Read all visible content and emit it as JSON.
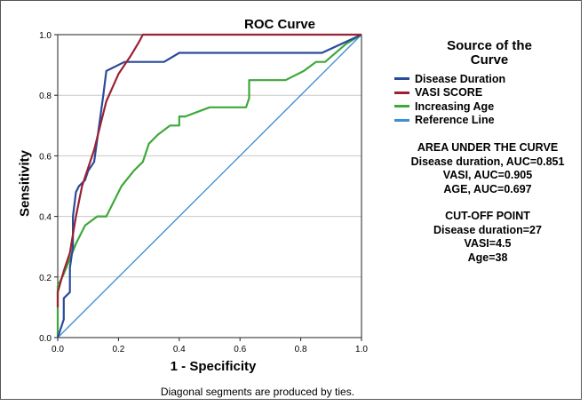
{
  "chart_data": {
    "type": "line",
    "title": "ROC Curve",
    "xlabel": "1 - Specificity",
    "ylabel": "Sensitivity",
    "xlim": [
      0,
      1
    ],
    "ylim": [
      0,
      1
    ],
    "xticks": [
      "0.0",
      "0.2",
      "0.4",
      "0.6",
      "0.8",
      "1.0"
    ],
    "yticks": [
      "0.0",
      "0.2",
      "0.4",
      "0.6",
      "0.8",
      "1.0"
    ],
    "grid": "horizontal",
    "legend_title": "Source of the Curve",
    "legend_placement": "right",
    "footnote": "Diagonal segments are produced by ties.",
    "series": [
      {
        "name": "Disease Duration",
        "color": "#2a4b9b",
        "points": [
          [
            0,
            0
          ],
          [
            0.01,
            0.03
          ],
          [
            0.02,
            0.06
          ],
          [
            0.02,
            0.13
          ],
          [
            0.04,
            0.15
          ],
          [
            0.04,
            0.23
          ],
          [
            0.05,
            0.3
          ],
          [
            0.05,
            0.4
          ],
          [
            0.06,
            0.48
          ],
          [
            0.07,
            0.5
          ],
          [
            0.09,
            0.52
          ],
          [
            0.1,
            0.55
          ],
          [
            0.12,
            0.58
          ],
          [
            0.15,
            0.8
          ],
          [
            0.16,
            0.88
          ],
          [
            0.22,
            0.91
          ],
          [
            0.35,
            0.91
          ],
          [
            0.4,
            0.94
          ],
          [
            0.87,
            0.94
          ],
          [
            1.0,
            1.0
          ]
        ]
      },
      {
        "name": "VASI SCORE",
        "color": "#9b2233",
        "points": [
          [
            0,
            0.1
          ],
          [
            0,
            0.15
          ],
          [
            0.02,
            0.22
          ],
          [
            0.04,
            0.28
          ],
          [
            0.06,
            0.4
          ],
          [
            0.08,
            0.5
          ],
          [
            0.12,
            0.62
          ],
          [
            0.16,
            0.78
          ],
          [
            0.2,
            0.87
          ],
          [
            0.24,
            0.93
          ],
          [
            0.27,
            0.98
          ],
          [
            0.28,
            1.0
          ],
          [
            1.0,
            1.0
          ]
        ]
      },
      {
        "name": "Increasing Age",
        "color": "#3ea83a",
        "points": [
          [
            0,
            0
          ],
          [
            0,
            0.17
          ],
          [
            0.02,
            0.21
          ],
          [
            0.04,
            0.26
          ],
          [
            0.06,
            0.31
          ],
          [
            0.09,
            0.37
          ],
          [
            0.13,
            0.4
          ],
          [
            0.16,
            0.4
          ],
          [
            0.21,
            0.5
          ],
          [
            0.25,
            0.55
          ],
          [
            0.28,
            0.58
          ],
          [
            0.3,
            0.64
          ],
          [
            0.33,
            0.67
          ],
          [
            0.37,
            0.7
          ],
          [
            0.4,
            0.7
          ],
          [
            0.4,
            0.73
          ],
          [
            0.42,
            0.73
          ],
          [
            0.5,
            0.76
          ],
          [
            0.62,
            0.76
          ],
          [
            0.63,
            0.79
          ],
          [
            0.63,
            0.85
          ],
          [
            0.75,
            0.85
          ],
          [
            0.81,
            0.88
          ],
          [
            0.85,
            0.91
          ],
          [
            0.88,
            0.91
          ],
          [
            0.95,
            0.97
          ],
          [
            1.0,
            1.0
          ]
        ]
      },
      {
        "name": "Reference Line",
        "color": "#3f8fd6",
        "points": [
          [
            0,
            0
          ],
          [
            1,
            1
          ]
        ]
      }
    ],
    "annotations": {
      "auc_heading": "AREA UNDER THE CURVE",
      "auc_lines": [
        "Disease duration, AUC=0.851",
        "VASI, AUC=0.905",
        "AGE, AUC=0.697"
      ],
      "cutoff_heading": "CUT-OFF POINT",
      "cutoff_lines": [
        "Disease duration=27",
        "VASI=4.5",
        "Age=38"
      ]
    }
  }
}
